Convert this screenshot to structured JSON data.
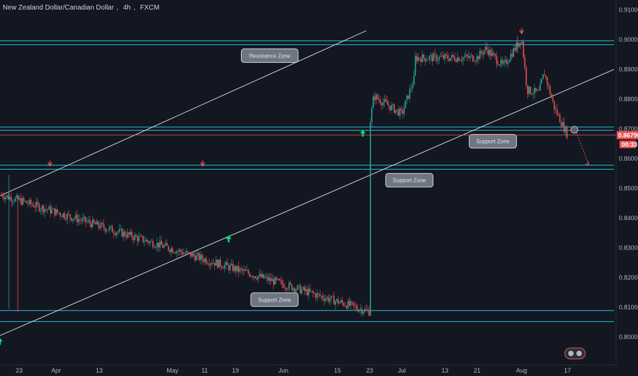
{
  "header": {
    "symbol": "New Zealand Dollar/Canadian Dollar",
    "interval": "4h",
    "exchange": "FXCM"
  },
  "colors": {
    "background": "#131722",
    "zone_line": "#26c6da",
    "channel_line": "#d1d4dc",
    "price_line": "#ef5350",
    "bull_candle": "#26a69a",
    "bear_candle": "#ef5350",
    "arrow_up": "#00e676",
    "arrow_down": "#ef5350"
  },
  "chart_data": {
    "type": "candlestick",
    "symbol": "NZDCAD",
    "interval": "4h",
    "y_axis": {
      "min": 0.795,
      "max": 0.912,
      "ticks": [
        "0.91000",
        "0.90000",
        "0.89000",
        "0.88000",
        "0.87000",
        "0.86000",
        "0.85000",
        "0.84000",
        "0.83000",
        "0.82000",
        "0.81000",
        "0.80000"
      ]
    },
    "x_axis": {
      "ticks": [
        "23",
        "Apr",
        "13",
        "May",
        "11",
        "19",
        "Jun",
        "15",
        "23",
        "Jul",
        "13",
        "21",
        "Aug",
        "17"
      ]
    },
    "current_price": {
      "label": "0.86790",
      "value": 0.8679,
      "countdown": "00:33"
    },
    "price_path": [
      {
        "x": "start",
        "y": 0.848
      },
      {
        "x": "23",
        "y": 0.8085
      },
      {
        "x": "Mar 28",
        "y": 0.842
      },
      {
        "x": "Apr",
        "y": 0.848
      },
      {
        "x": "Apr 6",
        "y": 0.8285
      },
      {
        "x": "13",
        "y": 0.851
      },
      {
        "x": "May",
        "y": 0.853
      },
      {
        "x": "11",
        "y": 0.855
      },
      {
        "x": "May 14",
        "y": 0.8455
      },
      {
        "x": "May 17",
        "y": 0.836
      },
      {
        "x": "19",
        "y": 0.846
      },
      {
        "x": "May 25",
        "y": 0.855
      },
      {
        "x": "Jun",
        "y": 0.852
      },
      {
        "x": "Jun 3",
        "y": 0.874
      },
      {
        "x": "15",
        "y": 0.876
      },
      {
        "x": "23",
        "y": 0.871
      },
      {
        "x": "Jun 26",
        "y": 0.881
      },
      {
        "x": "Jul",
        "y": 0.875
      },
      {
        "x": "Jul 6",
        "y": 0.887
      },
      {
        "x": "13",
        "y": 0.893
      },
      {
        "x": "21",
        "y": 0.894
      },
      {
        "x": "Jul 24",
        "y": 0.897
      },
      {
        "x": "Jul 28",
        "y": 0.891
      },
      {
        "x": "Aug",
        "y": 0.9005
      },
      {
        "x": "Aug 3",
        "y": 0.883
      },
      {
        "x": "Aug 8",
        "y": 0.882
      },
      {
        "x": "Aug 10",
        "y": 0.889
      },
      {
        "x": "Aug 13",
        "y": 0.877
      },
      {
        "x": "Aug 16",
        "y": 0.8679
      }
    ],
    "zones": [
      {
        "label": "Resistance Zone",
        "top": 0.8996,
        "bottom": 0.8983
      },
      {
        "label": "Support Zone",
        "top": 0.8706,
        "bottom": 0.8695
      },
      {
        "label": "Support Zone",
        "top": 0.8578,
        "bottom": 0.8564
      },
      {
        "label": "Support Zone",
        "top": 0.8089,
        "bottom": 0.8052
      }
    ],
    "channel": {
      "upper": [
        {
          "x": "start",
          "y": 0.8475
        },
        {
          "x": "Jun 25",
          "y": 0.903
        }
      ],
      "lower": [
        {
          "x": "start",
          "y": 0.8005
        },
        {
          "x": "end",
          "y": 0.89
        }
      ]
    },
    "markers": [
      {
        "type": "arrow-up",
        "x": "start",
        "y": 0.7985
      },
      {
        "type": "arrow-down",
        "x": "Mar 29",
        "y": 0.858
      },
      {
        "type": "arrow-down",
        "x": "May 10",
        "y": 0.858
      },
      {
        "type": "arrow-up",
        "x": "May 17",
        "y": 0.833
      },
      {
        "type": "arrow-up",
        "x": "Jun 23",
        "y": 0.8685
      },
      {
        "type": "arrow-down",
        "x": "Aug",
        "y": 0.9025
      }
    ],
    "projection": {
      "from": {
        "x": "Aug 16",
        "y": 0.8697
      },
      "to": {
        "x": "Aug 18",
        "y": 0.858
      }
    }
  }
}
